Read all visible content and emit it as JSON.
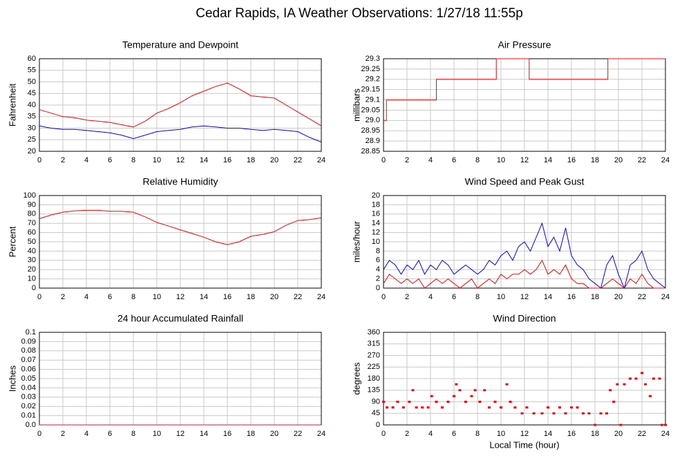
{
  "title": "Cedar Rapids, IA Weather Observations: 1/27/18 11:55p",
  "chart_data": [
    {
      "type": "line",
      "title": "Temperature and Dewpoint",
      "ylabel": "Fahrenheit",
      "x": [
        0,
        1,
        2,
        3,
        4,
        5,
        6,
        7,
        8,
        9,
        10,
        11,
        12,
        13,
        14,
        15,
        16,
        17,
        18,
        19,
        20,
        21,
        22,
        23,
        24
      ],
      "series": [
        {
          "color": "#ff0000",
          "values": [
            38,
            36.5,
            35,
            34.5,
            33.5,
            33,
            32.5,
            31.5,
            30.5,
            33,
            36.5,
            38.5,
            41,
            44,
            46,
            48,
            49.5,
            47,
            44,
            43.5,
            43,
            40,
            37,
            34,
            31
          ]
        },
        {
          "color": "#0000ff",
          "values": [
            31,
            30,
            29.5,
            29.5,
            29,
            28.5,
            28,
            27,
            25.5,
            27,
            28.5,
            29,
            29.5,
            30.5,
            31,
            30.5,
            30,
            30,
            29.5,
            29,
            29.5,
            29,
            28.5,
            26,
            24
          ]
        }
      ],
      "xlim": [
        0,
        24
      ],
      "xticks": [
        0,
        2,
        4,
        6,
        8,
        10,
        12,
        14,
        16,
        18,
        20,
        22,
        24
      ],
      "ylim": [
        20,
        60
      ],
      "yticks": [
        20,
        25,
        30,
        35,
        40,
        45,
        50,
        55,
        60
      ],
      "grid": true
    },
    {
      "type": "line",
      "title": "Air Pressure",
      "ylabel": "millibars",
      "x": [
        0,
        0.25,
        0.25,
        4.5,
        4.5,
        9.6,
        9.6,
        12.4,
        12.4,
        19.1,
        19.1,
        24
      ],
      "series": [
        {
          "color": "#ff0000",
          "values": [
            29,
            29,
            29.1,
            29.1,
            29.2,
            29.2,
            29.3,
            29.3,
            29.2,
            29.2,
            29.3,
            29.3
          ]
        }
      ],
      "xlim": [
        0,
        24
      ],
      "xticks": [
        0,
        2,
        4,
        6,
        8,
        10,
        12,
        14,
        16,
        18,
        20,
        22,
        24
      ],
      "ylim": [
        28.85,
        29.3
      ],
      "yticks": [
        28.85,
        28.9,
        28.95,
        {
          "value": 29,
          "label": "29.0"
        },
        29.05,
        29.1,
        29.15,
        29.2,
        29.25,
        29.3
      ],
      "grid": true
    },
    {
      "type": "line",
      "title": "Relative Humidity",
      "ylabel": "Percent",
      "x": [
        0,
        1,
        2,
        3,
        4,
        5,
        6,
        7,
        8,
        9,
        10,
        11,
        12,
        13,
        14,
        15,
        16,
        17,
        18,
        19,
        20,
        21,
        22,
        23,
        24
      ],
      "series": [
        {
          "color": "#ff0000",
          "values": [
            75,
            79,
            82,
            83.5,
            84,
            84,
            83,
            83,
            82,
            77,
            71,
            67,
            63,
            59,
            55,
            50,
            47,
            50,
            56,
            58,
            61,
            68,
            73,
            74,
            76
          ]
        }
      ],
      "xlim": [
        0,
        24
      ],
      "xticks": [
        0,
        2,
        4,
        6,
        8,
        10,
        12,
        14,
        16,
        18,
        20,
        22,
        24
      ],
      "ylim": [
        0,
        100
      ],
      "yticks": [
        0,
        10,
        20,
        30,
        40,
        50,
        60,
        70,
        80,
        90,
        100
      ],
      "grid": true
    },
    {
      "type": "line",
      "title": "Wind Speed and Peak Gust",
      "ylabel": "miles/hour",
      "x": [
        0,
        0.5,
        1,
        1.5,
        2,
        2.5,
        3,
        3.5,
        4,
        4.5,
        5,
        5.5,
        6,
        6.5,
        7,
        7.5,
        8,
        8.5,
        9,
        9.5,
        10,
        10.5,
        11,
        11.5,
        12,
        12.5,
        13,
        13.5,
        14,
        14.5,
        15,
        15.5,
        16,
        16.5,
        17,
        17.5,
        18,
        18.5,
        19,
        19.5,
        20,
        20.5,
        21,
        21.5,
        22,
        22.5,
        23,
        23.5,
        24
      ],
      "series": [
        {
          "color": "#0000ff",
          "values": [
            4,
            6,
            5,
            3,
            5,
            4,
            6,
            3,
            5,
            4,
            6,
            5,
            3,
            4,
            5,
            4,
            3,
            4,
            6,
            5,
            7,
            8,
            6,
            9,
            10,
            8,
            11,
            14,
            9,
            11,
            8,
            13,
            7,
            5,
            4,
            2,
            1,
            0,
            5,
            7,
            3,
            0,
            5,
            6,
            8,
            4,
            2,
            1,
            0
          ]
        },
        {
          "color": "#ff0000",
          "values": [
            1,
            3,
            2,
            1,
            2,
            1,
            2,
            0,
            1,
            2,
            1,
            2,
            1,
            0,
            1,
            2,
            0,
            1,
            2,
            1,
            3,
            2,
            3,
            3,
            4,
            3,
            4,
            6,
            3,
            4,
            3,
            5,
            2,
            1,
            1,
            0,
            0,
            0,
            1,
            2,
            1,
            0,
            2,
            1,
            3,
            1,
            0,
            0,
            0
          ]
        }
      ],
      "xlim": [
        0,
        24
      ],
      "xticks": [
        0,
        2,
        4,
        6,
        8,
        10,
        12,
        14,
        16,
        18,
        20,
        22,
        24
      ],
      "ylim": [
        0,
        20
      ],
      "yticks": [
        0,
        2,
        4,
        6,
        8,
        10,
        12,
        14,
        16,
        18,
        20
      ],
      "grid": true
    },
    {
      "type": "line",
      "title": "24 hour Accumulated Rainfall",
      "ylabel": "Inches",
      "x": [
        0,
        24
      ],
      "series": [
        {
          "color": "#d01050",
          "values": [
            0,
            0
          ]
        }
      ],
      "xlim": [
        0,
        24
      ],
      "xticks": [
        0,
        2,
        4,
        6,
        8,
        10,
        12,
        14,
        16,
        18,
        20,
        22,
        24
      ],
      "ylim": [
        0,
        0.1
      ],
      "yticks": [
        {
          "value": 0,
          "label": "0.0"
        },
        0.01,
        0.02,
        0.03,
        0.04,
        0.05,
        0.06,
        0.07,
        0.08,
        0.09,
        0.1
      ],
      "grid": true
    },
    {
      "type": "scatter",
      "title": "Wind Direction",
      "ylabel": "degrees",
      "xlabel": "Local Time (hour)",
      "x": [
        0,
        0.3,
        0.8,
        1.2,
        1.7,
        2.2,
        2.5,
        2.8,
        3.3,
        3.8,
        4.1,
        4.5,
        5,
        5.5,
        6,
        6.2,
        6.5,
        7,
        7.5,
        7.8,
        8.2,
        8.6,
        9,
        9.5,
        10,
        10.5,
        10.8,
        11.2,
        11.8,
        12.2,
        12.8,
        13.5,
        14,
        14.5,
        15,
        15.5,
        16,
        16.5,
        17,
        17.5,
        18,
        18.5,
        19,
        19.3,
        19.6,
        19.9,
        20.2,
        20.5,
        21,
        21.5,
        22,
        22.3,
        22.7,
        23,
        23.5,
        23.7,
        24
      ],
      "series": [
        {
          "color": "#ff0000",
          "values": [
            90,
            68,
            68,
            90,
            68,
            90,
            135,
            68,
            68,
            68,
            112,
            90,
            68,
            90,
            112,
            158,
            135,
            90,
            112,
            135,
            90,
            135,
            68,
            90,
            68,
            158,
            90,
            68,
            45,
            68,
            45,
            45,
            68,
            45,
            68,
            45,
            68,
            68,
            45,
            45,
            0,
            45,
            45,
            135,
            90,
            158,
            0,
            158,
            180,
            180,
            202,
            158,
            112,
            180,
            180,
            0,
            0
          ]
        }
      ],
      "xlim": [
        0,
        24
      ],
      "xticks": [
        0,
        2,
        4,
        6,
        8,
        10,
        12,
        14,
        16,
        18,
        20,
        22,
        24
      ],
      "ylim": [
        0,
        360
      ],
      "yticks": [
        0,
        45,
        90,
        135,
        180,
        225,
        270,
        315,
        360
      ],
      "grid": true
    }
  ]
}
